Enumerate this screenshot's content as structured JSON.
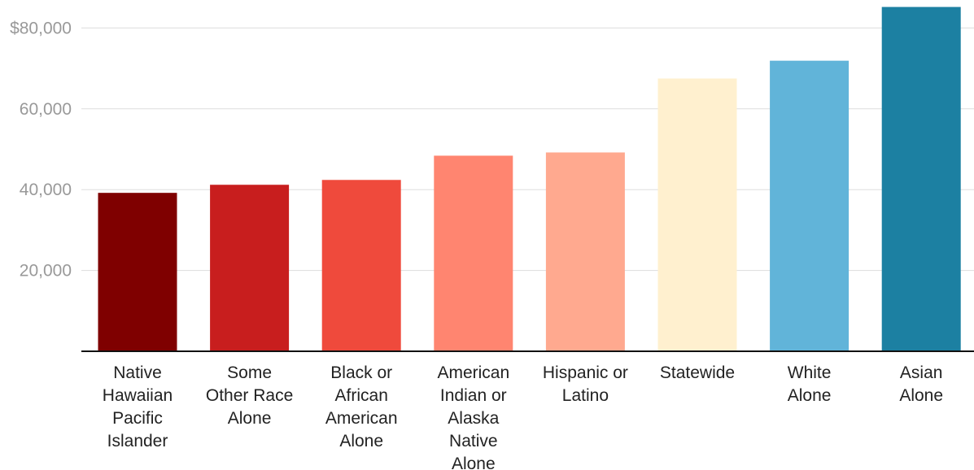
{
  "chart_data": {
    "type": "bar",
    "categories": [
      [
        "Native",
        "Hawaiian",
        "Pacific",
        "Islander"
      ],
      [
        "Some",
        "Other Race",
        "Alone"
      ],
      [
        "Black or",
        "African",
        "American",
        "Alone"
      ],
      [
        "American",
        "Indian or",
        "Alaska",
        "Native",
        "Alone"
      ],
      [
        "Hispanic or",
        "Latino"
      ],
      [
        "Statewide"
      ],
      [
        "White",
        "Alone"
      ],
      [
        "Asian",
        "Alone"
      ]
    ],
    "values": [
      39200,
      41200,
      42400,
      48400,
      49200,
      67500,
      71900,
      85200
    ],
    "colors": [
      "#7f0000",
      "#c81e1e",
      "#ef4a3c",
      "#ff8570",
      "#ffa98f",
      "#fff0cf",
      "#61b4d9",
      "#1c80a2"
    ],
    "ylim": [
      0,
      86000
    ],
    "yticks": [
      20000,
      40000,
      60000,
      80000
    ],
    "ytick_labels": [
      "20,000",
      "40,000",
      "60,000",
      "$80,000"
    ],
    "grid": true,
    "title": "",
    "xlabel": "",
    "ylabel": ""
  }
}
